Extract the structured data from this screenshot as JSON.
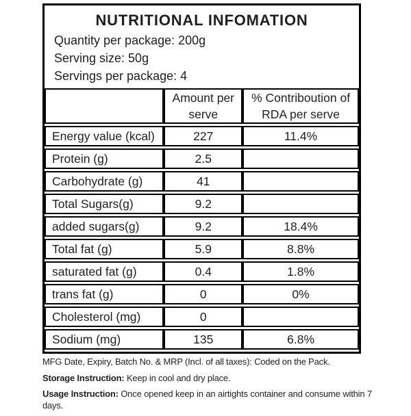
{
  "title": "NUTRITIONAL INFOMATION",
  "package_info": {
    "quantity": "Quantity per package: 200g",
    "serving_size": "Serving size: 50g",
    "servings": "Servings per package: 4"
  },
  "table": {
    "columns": [
      "",
      "Amount per serve",
      "% Contriboution of RDA per serve"
    ],
    "rows": [
      {
        "label": "Energy value (kcal)",
        "amount": "227",
        "rda": "11.4%"
      },
      {
        "label": "Protein (g)",
        "amount": "2.5",
        "rda": ""
      },
      {
        "label": "Carbohydrate (g)",
        "amount": "41",
        "rda": ""
      },
      {
        "label": "Total Sugars(g)",
        "amount": "9.2",
        "rda": ""
      },
      {
        "label": "added sugars(g)",
        "amount": "9.2",
        "rda": "18.4%"
      },
      {
        "label": "Total fat (g)",
        "amount": "5.9",
        "rda": "8.8%"
      },
      {
        "label": "saturated fat (g)",
        "amount": "0.4",
        "rda": "1.8%"
      },
      {
        "label": "trans fat (g)",
        "amount": "0",
        "rda": "0%"
      },
      {
        "label": "Cholesterol (mg)",
        "amount": "0",
        "rda": ""
      },
      {
        "label": "Sodium (mg)",
        "amount": "135",
        "rda": "6.8%"
      }
    ]
  },
  "footer": {
    "mfg_line": "MFG Date, Expiry, Batch No. & MRP (Incl. of all taxes): Coded on the Pack.",
    "storage_label": "Storage Instruction:",
    "storage_text": "Keep in cool and dry place.",
    "usage_label": "Usage Instruction:",
    "usage_text": "Once opened keep in an airtights container and consume within 7 days."
  },
  "colors": {
    "border": "#000000",
    "text": "#1f1f1f",
    "background": "#ffffff"
  }
}
